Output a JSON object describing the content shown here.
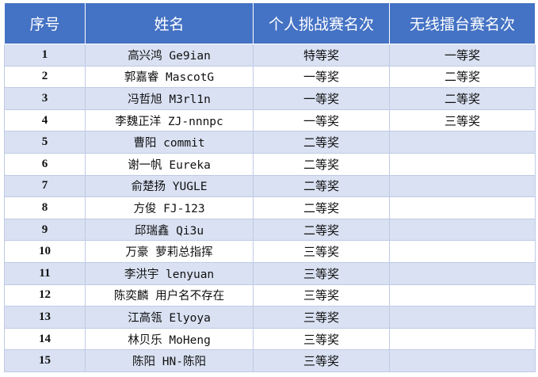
{
  "header": {
    "col_index": "序号",
    "col_name": "姓名",
    "col_individual": "个人挑战赛名次",
    "col_arena": "无线擂台赛名次"
  },
  "rows": [
    {
      "index": "1",
      "name": "高兴鸿 Ge9ian",
      "individual": "特等奖",
      "arena": "一等奖"
    },
    {
      "index": "2",
      "name": "郭嘉睿 MascotG",
      "individual": "一等奖",
      "arena": "二等奖"
    },
    {
      "index": "3",
      "name": "冯哲旭 M3rl1n",
      "individual": "一等奖",
      "arena": "二等奖"
    },
    {
      "index": "4",
      "name": "李魏正洋 ZJ-nnnpc",
      "individual": "一等奖",
      "arena": "三等奖"
    },
    {
      "index": "5",
      "name": "曹阳  commit",
      "individual": "二等奖",
      "arena": ""
    },
    {
      "index": "6",
      "name": "谢一帆  Eureka",
      "individual": "二等奖",
      "arena": ""
    },
    {
      "index": "7",
      "name": "俞楚扬  YUGLE",
      "individual": "二等奖",
      "arena": ""
    },
    {
      "index": "8",
      "name": "方俊  FJ-123",
      "individual": "二等奖",
      "arena": ""
    },
    {
      "index": "9",
      "name": "邱瑞鑫  Qi3u",
      "individual": "二等奖",
      "arena": ""
    },
    {
      "index": "10",
      "name": "万豪  萝莉总指挥",
      "individual": "三等奖",
      "arena": ""
    },
    {
      "index": "11",
      "name": "李洪宇  lenyuan",
      "individual": "三等奖",
      "arena": ""
    },
    {
      "index": "12",
      "name": "陈奕麟  用户名不存在",
      "individual": "三等奖",
      "arena": ""
    },
    {
      "index": "13",
      "name": "江高瓴  Elyoya",
      "individual": "三等奖",
      "arena": ""
    },
    {
      "index": "14",
      "name": "林贝乐 MoHeng",
      "individual": "三等奖",
      "arena": ""
    },
    {
      "index": "15",
      "name": "陈阳  HN-陈阳",
      "individual": "三等奖",
      "arena": ""
    }
  ],
  "colors": {
    "header_bg": "#4472c4",
    "header_text": "#ffffff",
    "row_band": "#d9e1f2",
    "row_plain": "#ffffff",
    "border": "#bfcbe4"
  }
}
